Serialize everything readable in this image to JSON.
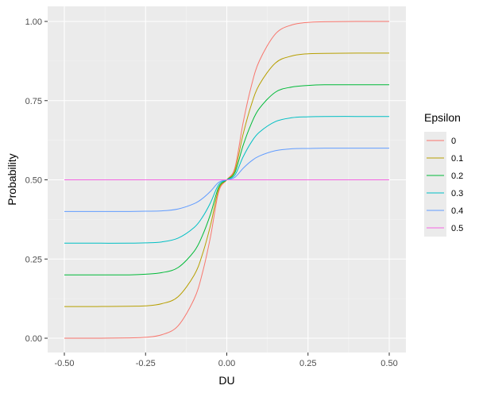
{
  "chart_data": {
    "type": "line",
    "xlabel": "DU",
    "ylabel": "Probability",
    "xlim": [
      -0.5,
      0.5
    ],
    "ylim": [
      0,
      1
    ],
    "x_ticks": [
      "-0.50",
      "-0.25",
      "0.00",
      "0.25",
      "0.50"
    ],
    "y_ticks": [
      "0.00",
      "0.25",
      "0.50",
      "0.75",
      "1.00"
    ],
    "grid": true,
    "legend": {
      "title": "Epsilon",
      "position": "right"
    },
    "x": [
      -0.5,
      -0.4,
      -0.3,
      -0.25,
      -0.2,
      -0.15,
      -0.1,
      -0.075,
      -0.05,
      -0.025,
      0,
      0.025,
      0.05,
      0.075,
      0.1,
      0.15,
      0.2,
      0.25,
      0.3,
      0.4,
      0.5
    ],
    "series": [
      {
        "name": "0",
        "color": "#F8766D",
        "values": [
          0.0,
          0.0,
          0.001,
          0.003,
          0.011,
          0.039,
          0.125,
          0.206,
          0.321,
          0.462,
          0.5,
          0.538,
          0.679,
          0.794,
          0.875,
          0.961,
          0.989,
          0.997,
          0.999,
          1.0,
          1.0
        ]
      },
      {
        "name": "0.1",
        "color": "#B79F00",
        "values": [
          0.1,
          0.1,
          0.101,
          0.102,
          0.109,
          0.131,
          0.2,
          0.265,
          0.357,
          0.47,
          0.5,
          0.53,
          0.643,
          0.735,
          0.8,
          0.869,
          0.891,
          0.898,
          0.899,
          0.9,
          0.9
        ]
      },
      {
        "name": "0.2",
        "color": "#00BA38",
        "values": [
          0.2,
          0.2,
          0.2,
          0.202,
          0.207,
          0.223,
          0.275,
          0.324,
          0.392,
          0.477,
          0.5,
          0.523,
          0.608,
          0.676,
          0.725,
          0.777,
          0.793,
          0.798,
          0.8,
          0.8,
          0.8
        ]
      },
      {
        "name": "0.3",
        "color": "#00BFC4",
        "values": [
          0.3,
          0.3,
          0.3,
          0.301,
          0.304,
          0.316,
          0.35,
          0.382,
          0.428,
          0.485,
          0.5,
          0.515,
          0.572,
          0.618,
          0.65,
          0.684,
          0.696,
          0.699,
          0.7,
          0.7,
          0.7
        ]
      },
      {
        "name": "0.4",
        "color": "#619CFF",
        "values": [
          0.4,
          0.4,
          0.4,
          0.401,
          0.402,
          0.408,
          0.425,
          0.441,
          0.464,
          0.492,
          0.5,
          0.508,
          0.536,
          0.559,
          0.575,
          0.592,
          0.598,
          0.599,
          0.6,
          0.6,
          0.6
        ]
      },
      {
        "name": "0.5",
        "color": "#F564E3",
        "values": [
          0.5,
          0.5,
          0.5,
          0.5,
          0.5,
          0.5,
          0.5,
          0.5,
          0.5,
          0.5,
          0.5,
          0.5,
          0.5,
          0.5,
          0.5,
          0.5,
          0.5,
          0.5,
          0.5,
          0.5,
          0.5
        ]
      }
    ]
  }
}
